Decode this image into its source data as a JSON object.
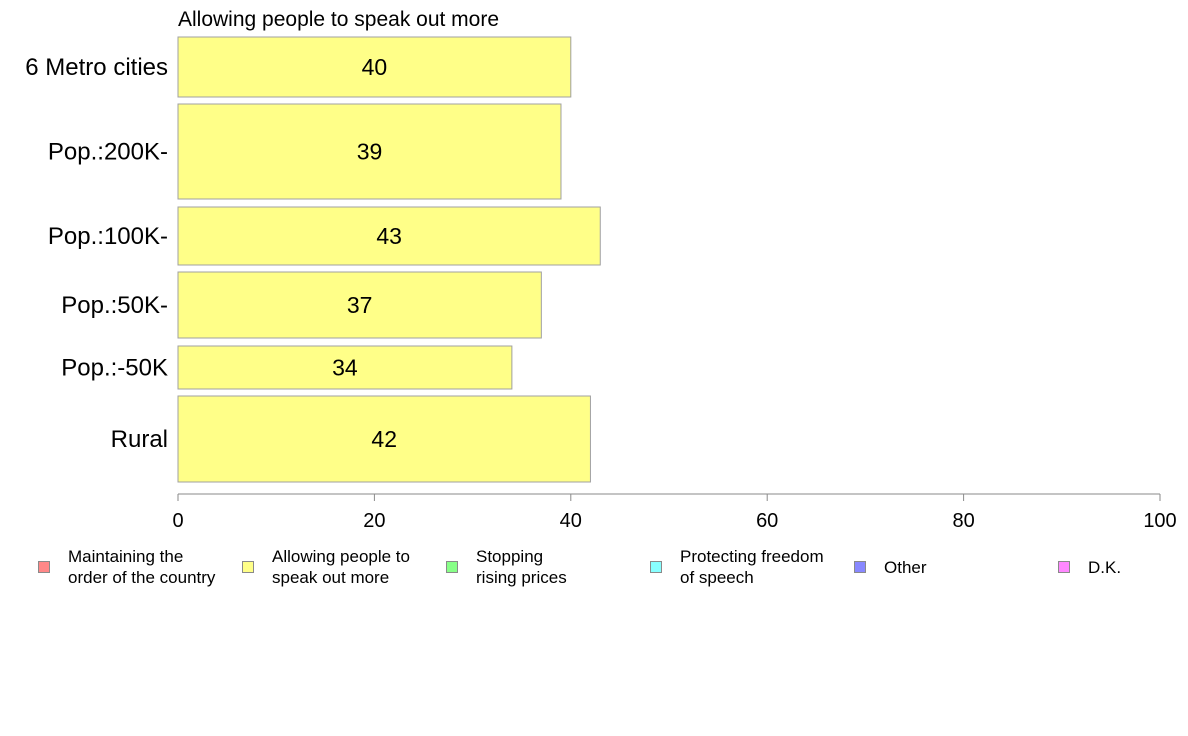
{
  "chart_data": {
    "type": "bar",
    "orientation": "horizontal",
    "title": "Allowing people to speak out more",
    "categories": [
      "6 Metro cities",
      "Pop.:200K-",
      "Pop.:100K-",
      "Pop.:50K-",
      "Pop.:-50K",
      "Rural"
    ],
    "values": [
      40,
      39,
      43,
      37,
      34,
      42
    ],
    "data_labels": [
      "40",
      "39",
      "43",
      "37",
      "34",
      "42"
    ],
    "xlim": [
      0,
      100
    ],
    "xticks": [
      "0",
      "20",
      "40",
      "60",
      "80",
      "100"
    ],
    "grid": false,
    "bar_color": "#ffff88",
    "bar_stroke": "#a0a0a0",
    "legend_position": "bottom",
    "legend": [
      {
        "label": "Maintaining the\norder of the country",
        "color": "#ff8888"
      },
      {
        "label": "Allowing people to\nspeak out more",
        "color": "#ffff88"
      },
      {
        "label": "Stopping\nrising prices",
        "color": "#88ff88"
      },
      {
        "label": "Protecting freedom\nof speech",
        "color": "#88ffff"
      },
      {
        "label": "Other",
        "color": "#8888ff"
      },
      {
        "label": "D.K.",
        "color": "#ff88ff"
      }
    ]
  }
}
